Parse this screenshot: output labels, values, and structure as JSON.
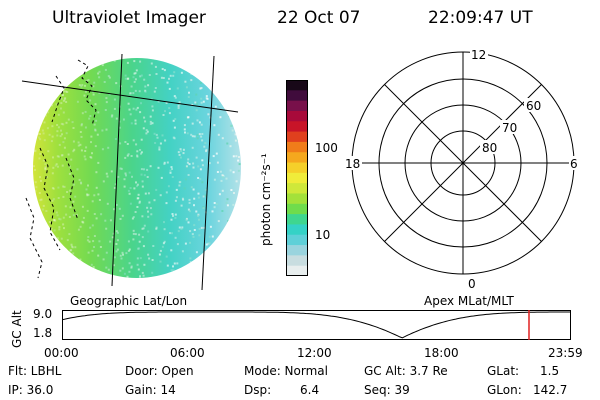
{
  "header": {
    "title": "Ultraviolet Imager",
    "date": "22 Oct 07",
    "time": "22:09:47 UT"
  },
  "image_panel": {
    "label": "Geographic Lat/Lon"
  },
  "colorbar": {
    "unit": "photon cm⁻²s⁻¹",
    "ticks": [
      "100",
      "10"
    ],
    "colors": [
      "#e8eeee",
      "#c8dde0",
      "#9ad4de",
      "#5fd0d8",
      "#35d2c6",
      "#3fd68f",
      "#6fdc4c",
      "#a3e13a",
      "#cfe83a",
      "#f0ec3a",
      "#f5d02a",
      "#f5a81e",
      "#f07c1a",
      "#e0401e",
      "#c81428",
      "#a80a3a",
      "#78104a",
      "#400c3c",
      "#180818"
    ]
  },
  "polar": {
    "label": "Apex MLat/MLT",
    "mlt_labels": {
      "top": "12",
      "left": "18",
      "right": "6",
      "bottom": "0"
    },
    "lat_labels": [
      "60",
      "70",
      "80"
    ]
  },
  "timeline": {
    "ylabel": "GC Alt",
    "y_ticks": [
      "9.0",
      "1.8"
    ],
    "x_ticks": [
      "00:00",
      "06:00",
      "12:00",
      "18:00",
      "23:59"
    ],
    "marker_color": "#e02020"
  },
  "info": {
    "flt": "Flt: LBHL",
    "ip": "IP: 36.0",
    "door": "Door: Open",
    "gain": "Gain: 14",
    "mode": "Mode: Normal",
    "dsp_label": "Dsp:",
    "dsp_value": "6.4",
    "gcalt": "GC Alt: 3.7 Re",
    "seq": "Seq: 39",
    "glat_label": "GLat:",
    "glat_value": "1.5",
    "glon_label": "GLon:",
    "glon_value": "142.7"
  }
}
